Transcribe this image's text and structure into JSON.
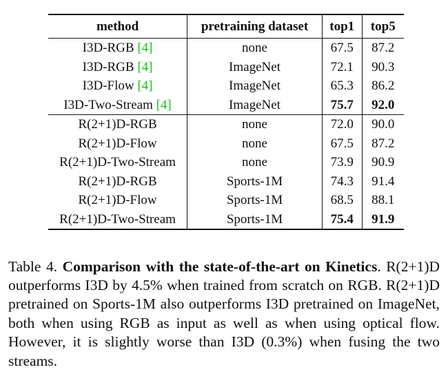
{
  "table": {
    "headers": [
      "method",
      "pretraining dataset",
      "top1",
      "top5"
    ],
    "rows": [
      {
        "method": "I3D-RGB",
        "ref": "[4]",
        "dataset": "none",
        "top1": "67.5",
        "top5": "87.2",
        "bold": false
      },
      {
        "method": "I3D-RGB",
        "ref": "[4]",
        "dataset": "ImageNet",
        "top1": "72.1",
        "top5": "90.3",
        "bold": false
      },
      {
        "method": "I3D-Flow",
        "ref": "[4]",
        "dataset": "ImageNet",
        "top1": "65.3",
        "top5": "86.2",
        "bold": false
      },
      {
        "method": "I3D-Two-Stream",
        "ref": "[4]",
        "dataset": "ImageNet",
        "top1": "75.7",
        "top5": "92.0",
        "bold": true
      },
      {
        "method": "R(2+1)D-RGB",
        "ref": "",
        "dataset": "none",
        "top1": "72.0",
        "top5": "90.0",
        "bold": false
      },
      {
        "method": "R(2+1)D-Flow",
        "ref": "",
        "dataset": "none",
        "top1": "67.5",
        "top5": "87.2",
        "bold": false
      },
      {
        "method": "R(2+1)D-Two-Stream",
        "ref": "",
        "dataset": "none",
        "top1": "73.9",
        "top5": "90.9",
        "bold": false
      },
      {
        "method": "R(2+1)D-RGB",
        "ref": "",
        "dataset": "Sports-1M",
        "top1": "74.3",
        "top5": "91.4",
        "bold": false
      },
      {
        "method": "R(2+1)D-Flow",
        "ref": "",
        "dataset": "Sports-1M",
        "top1": "68.5",
        "top5": "88.1",
        "bold": false
      },
      {
        "method": "R(2+1)D-Two-Stream",
        "ref": "",
        "dataset": "Sports-1M",
        "top1": "75.4",
        "top5": "91.9",
        "bold": true
      }
    ]
  },
  "caption": {
    "label": "Table 4.",
    "title": "Comparison with the state-of-the-art on Kinetics",
    "title_end": ".",
    "body": "R(2+1)D outperforms I3D by 4.5% when trained from scratch on RGB. R(2+1)D pretrained on Sports-1M also outperforms I3D pretrained on ImageNet, both when using RGB as input as well as when using optical flow.  However, it is slightly worse than I3D (0.3%) when fusing the two streams."
  }
}
